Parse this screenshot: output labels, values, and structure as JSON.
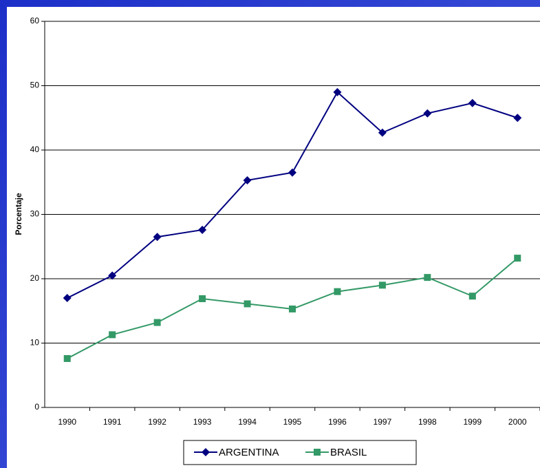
{
  "chart_data": {
    "type": "line",
    "y_label": "Porcentaje",
    "categories": [
      "1990",
      "1991",
      "1992",
      "1993",
      "1994",
      "1995",
      "1996",
      "1997",
      "1998",
      "1999",
      "2000"
    ],
    "series": [
      {
        "name": "ARGENTINA",
        "color": "#000080",
        "marker": "diamond",
        "values": [
          17,
          20.5,
          26.5,
          27.6,
          35.3,
          36.5,
          49,
          42.7,
          45.7,
          47.3,
          45
        ]
      },
      {
        "name": "BRASIL",
        "color": "#339966",
        "marker": "square",
        "values": [
          7.6,
          11.3,
          13.2,
          16.9,
          16.1,
          15.3,
          18,
          19,
          20.2,
          17.3,
          23.2
        ]
      }
    ],
    "ylim": [
      0,
      60
    ],
    "yticks": [
      0,
      10,
      20,
      30,
      40,
      50,
      60
    ],
    "grid": true,
    "legend": "bottom"
  }
}
